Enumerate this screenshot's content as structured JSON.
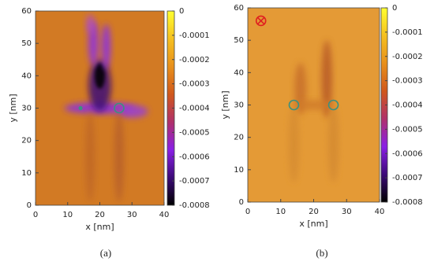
{
  "chart_data": [
    {
      "type": "heatmap",
      "panel_label": "(a)",
      "xlabel": "x [nm]",
      "ylabel": "y [nm]",
      "xlim": [
        0,
        40
      ],
      "ylim": [
        0,
        60
      ],
      "xticks": [
        0,
        10,
        20,
        30,
        40
      ],
      "yticks": [
        0,
        10,
        20,
        30,
        40,
        50,
        60
      ],
      "clim": [
        -0.0008,
        0
      ],
      "cticks": [
        0,
        -0.0001,
        -0.0002,
        -0.0003,
        -0.0004,
        -0.0005,
        -0.0006,
        -0.0007,
        -0.0008
      ],
      "colormap": [
        "#000000",
        "#3c0a78",
        "#8a1fe6",
        "#b0306a",
        "#d0581c",
        "#e8901c",
        "#f5c020",
        "#ffff30"
      ],
      "markers": [
        {
          "x": 26,
          "y": 30,
          "color": "#3c9080"
        },
        {
          "x": 14,
          "y": 30,
          "color": "#3c9080"
        }
      ]
    },
    {
      "type": "heatmap",
      "panel_label": "(b)",
      "xlabel": "x [nm]",
      "ylabel": "y [nm]",
      "xlim": [
        0,
        40
      ],
      "ylim": [
        0,
        60
      ],
      "xticks": [
        0,
        10,
        20,
        30,
        40
      ],
      "yticks": [
        0,
        10,
        20,
        30,
        40,
        50,
        60
      ],
      "clim": [
        -0.0008,
        0
      ],
      "cticks": [
        0,
        -0.0001,
        -0.0002,
        -0.0003,
        -0.0004,
        -0.0005,
        -0.0006,
        -0.0007,
        -0.0008
      ],
      "colormap": [
        "#000000",
        "#3c0a78",
        "#8a1fe6",
        "#b0306a",
        "#d0581c",
        "#e8901c",
        "#f5c020",
        "#ffff30"
      ],
      "markers": [
        {
          "x": 14,
          "y": 30,
          "color": "#3c9080"
        },
        {
          "x": 26,
          "y": 30,
          "color": "#3c9080"
        },
        {
          "x": 4,
          "y": 56,
          "color": "#e02020"
        }
      ]
    }
  ]
}
